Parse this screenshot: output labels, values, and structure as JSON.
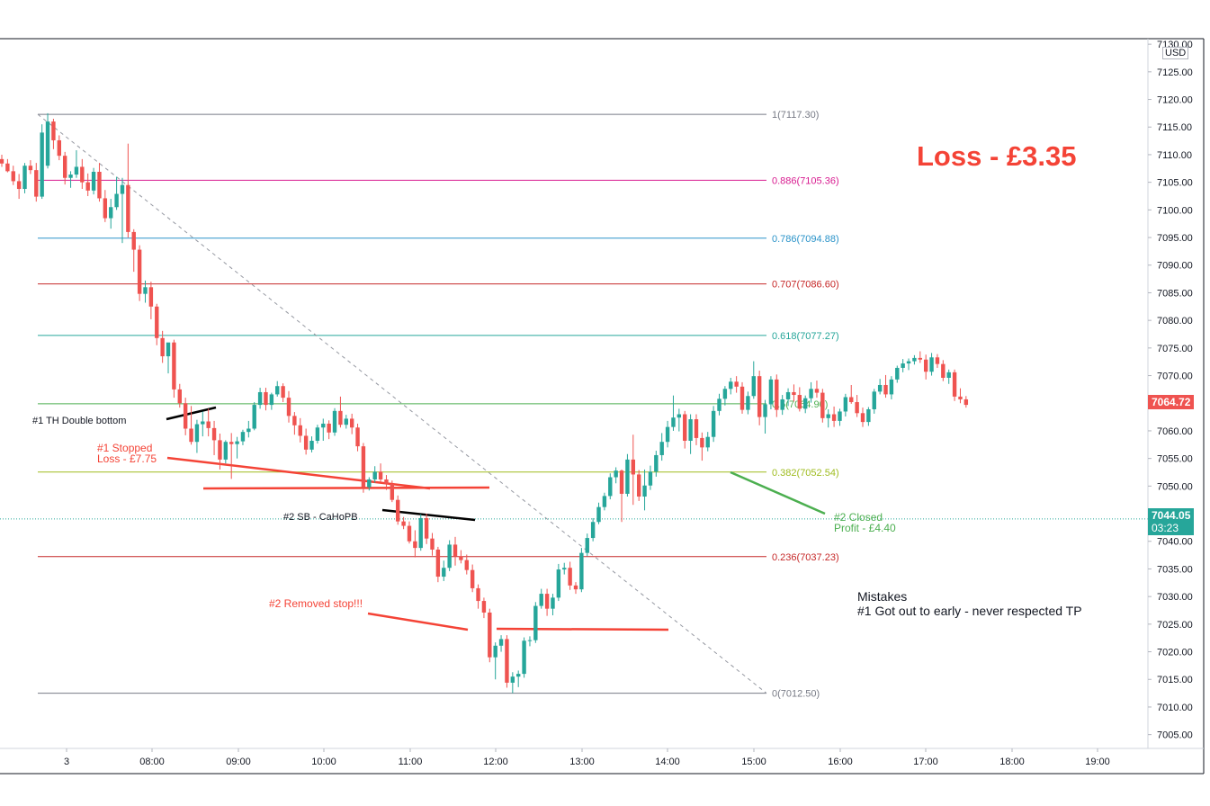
{
  "chart_data": {
    "type": "candlestick",
    "currency": "USD",
    "y_range": [
      7002.5,
      7131.0
    ],
    "y_ticks": [
      "7130.00",
      "7125.00",
      "7120.00",
      "7115.00",
      "7110.00",
      "7105.00",
      "7100.00",
      "7095.00",
      "7090.00",
      "7085.00",
      "7080.00",
      "7075.00",
      "7070.00",
      "7065.00",
      "7060.00",
      "7055.00",
      "7050.00",
      "7045.00",
      "7040.00",
      "7035.00",
      "7030.00",
      "7025.00",
      "7020.00",
      "7015.00",
      "7010.00",
      "7005.00"
    ],
    "x_ticks": [
      "3",
      "08:00",
      "09:00",
      "10:00",
      "11:00",
      "12:00",
      "13:00",
      "14:00",
      "15:00",
      "16:00",
      "17:00",
      "18:00",
      "19:00"
    ],
    "candles": [
      [
        7109.2,
        7110.0,
        7107.8,
        7108.4
      ],
      [
        7108.4,
        7109.2,
        7106.8,
        7107.0
      ],
      [
        7107.0,
        7108.0,
        7104.5,
        7105.2
      ],
      [
        7105.2,
        7106.5,
        7102.0,
        7103.8
      ],
      [
        7103.8,
        7108.5,
        7103.0,
        7108.0
      ],
      [
        7108.0,
        7109.0,
        7106.5,
        7107.2
      ],
      [
        7107.2,
        7108.5,
        7101.5,
        7102.4
      ],
      [
        7102.4,
        7115.5,
        7102.0,
        7114.0
      ],
      [
        7108.0,
        7117.5,
        7107.5,
        7116.0
      ],
      [
        7116.0,
        7116.5,
        7111.0,
        7112.6
      ],
      [
        7112.6,
        7113.5,
        7109.0,
        7109.8
      ],
      [
        7109.8,
        7110.5,
        7104.6,
        7105.8
      ],
      [
        7105.8,
        7107.0,
        7104.0,
        7106.4
      ],
      [
        7106.4,
        7110.8,
        7105.8,
        7107.8
      ],
      [
        7107.8,
        7109.2,
        7103.8,
        7105.0
      ],
      [
        7105.0,
        7106.6,
        7102.5,
        7103.5
      ],
      [
        7103.5,
        7107.6,
        7102.8,
        7106.9
      ],
      [
        7106.9,
        7108.5,
        7101.5,
        7102.1
      ],
      [
        7102.1,
        7103.6,
        7097.8,
        7098.5
      ],
      [
        7098.5,
        7102.0,
        7096.6,
        7100.5
      ],
      [
        7100.5,
        7106.0,
        7100.0,
        7102.9
      ],
      [
        7102.9,
        7105.8,
        7094.0,
        7104.5
      ],
      [
        7104.5,
        7112.0,
        7095.0,
        7096.0
      ],
      [
        7096.0,
        7096.5,
        7088.8,
        7092.8
      ],
      [
        7092.8,
        7093.6,
        7083.5,
        7084.8
      ],
      [
        7084.8,
        7087.2,
        7083.2,
        7086.0
      ],
      [
        7086.0,
        7087.0,
        7080.2,
        7082.5
      ],
      [
        7082.5,
        7083.0,
        7075.5,
        7076.8
      ],
      [
        7076.8,
        7078.1,
        7072.3,
        7073.5
      ],
      [
        7073.5,
        7075.6,
        7070.4,
        7076.0
      ],
      [
        7076.0,
        7076.5,
        7066.0,
        7067.5
      ],
      [
        7067.5,
        7068.5,
        7064.2,
        7065.0
      ],
      [
        7065.0,
        7066.0,
        7059.2,
        7060.4
      ],
      [
        7060.4,
        7064.5,
        7057.5,
        7058.0
      ],
      [
        7058.0,
        7062.0,
        7056.0,
        7061.2
      ],
      [
        7061.2,
        7063.5,
        7059.0,
        7061.7
      ],
      [
        7061.7,
        7064.0,
        7059.0,
        7060.5
      ],
      [
        7060.5,
        7061.8,
        7055.6,
        7058.3
      ],
      [
        7058.3,
        7059.5,
        7053.0,
        7054.8
      ],
      [
        7054.8,
        7058.3,
        7054.1,
        7058.0
      ],
      [
        7058.0,
        7059.6,
        7051.3,
        7057.6
      ],
      [
        7057.6,
        7058.9,
        7055.0,
        7058.1
      ],
      [
        7058.1,
        7060.2,
        7057.4,
        7059.8
      ],
      [
        7059.8,
        7061.8,
        7058.8,
        7060.4
      ],
      [
        7060.4,
        7065.2,
        7060.1,
        7064.7
      ],
      [
        7064.7,
        7067.8,
        7064.0,
        7067.0
      ],
      [
        7067.0,
        7067.8,
        7063.7,
        7064.7
      ],
      [
        7064.7,
        7066.9,
        7063.8,
        7066.6
      ],
      [
        7066.6,
        7069.0,
        7066.2,
        7068.1
      ],
      [
        7068.1,
        7068.6,
        7065.2,
        7066.0
      ],
      [
        7066.0,
        7067.2,
        7061.5,
        7062.7
      ],
      [
        7062.7,
        7063.4,
        7059.3,
        7061.0
      ],
      [
        7061.0,
        7062.3,
        7057.9,
        7059.1
      ],
      [
        7059.1,
        7060.4,
        7055.7,
        7056.6
      ],
      [
        7056.6,
        7059.0,
        7056.1,
        7058.2
      ],
      [
        7058.2,
        7061.1,
        7057.7,
        7060.6
      ],
      [
        7060.6,
        7062.2,
        7058.2,
        7061.3
      ],
      [
        7061.3,
        7061.9,
        7058.5,
        7059.7
      ],
      [
        7059.7,
        7064.1,
        7059.1,
        7063.6
      ],
      [
        7063.6,
        7066.2,
        7060.6,
        7061.1
      ],
      [
        7061.1,
        7062.9,
        7060.4,
        7062.2
      ],
      [
        7062.2,
        7063.1,
        7059.4,
        7060.6
      ],
      [
        7060.6,
        7061.3,
        7056.3,
        7057.2
      ],
      [
        7057.2,
        7057.8,
        7048.8,
        7049.8
      ],
      [
        7049.8,
        7051.6,
        7049.2,
        7051.2
      ],
      [
        7051.2,
        7053.6,
        7050.6,
        7052.6
      ],
      [
        7052.6,
        7054.1,
        7050.8,
        7051.2
      ],
      [
        7051.2,
        7052.0,
        7049.3,
        7050.4
      ],
      [
        7050.4,
        7051.0,
        7047.1,
        7047.5
      ],
      [
        7047.5,
        7048.3,
        7043.0,
        7043.6
      ],
      [
        7043.6,
        7044.4,
        7042.2,
        7042.8
      ],
      [
        7042.8,
        7043.6,
        7039.6,
        7040.0
      ],
      [
        7040.0,
        7042.0,
        7037.1,
        7038.8
      ],
      [
        7038.8,
        7044.9,
        7038.3,
        7044.2
      ],
      [
        7044.2,
        7045.0,
        7039.5,
        7040.5
      ],
      [
        7040.5,
        7041.5,
        7037.4,
        7038.5
      ],
      [
        7038.5,
        7039.0,
        7032.6,
        7033.6
      ],
      [
        7033.6,
        7036.5,
        7032.8,
        7035.2
      ],
      [
        7035.2,
        7040.2,
        7034.6,
        7039.4
      ],
      [
        7039.4,
        7040.8,
        7035.6,
        7037.3
      ],
      [
        7037.3,
        7038.4,
        7036.0,
        7036.6
      ],
      [
        7036.6,
        7037.6,
        7034.0,
        7034.8
      ],
      [
        7034.8,
        7035.8,
        7030.8,
        7031.5
      ],
      [
        7031.5,
        7032.2,
        7027.8,
        7029.2
      ],
      [
        7029.2,
        7029.8,
        7026.1,
        7027.1
      ],
      [
        7027.1,
        7027.8,
        7018.1,
        7019.0
      ],
      [
        7019.0,
        7021.7,
        7015.0,
        7021.1
      ],
      [
        7021.1,
        7023.0,
        7020.0,
        7022.3
      ],
      [
        7022.3,
        7023.0,
        7013.5,
        7014.4
      ],
      [
        7014.4,
        7016.3,
        7012.5,
        7015.5
      ],
      [
        7015.5,
        7016.6,
        7013.6,
        7016.0
      ],
      [
        7016.0,
        7022.6,
        7015.3,
        7022.0
      ],
      [
        7022.0,
        7022.8,
        7021.0,
        7022.1
      ],
      [
        7022.1,
        7029.0,
        7021.6,
        7028.3
      ],
      [
        7028.3,
        7031.4,
        7027.8,
        7030.5
      ],
      [
        7030.5,
        7031.4,
        7026.5,
        7027.8
      ],
      [
        7027.8,
        7030.5,
        7026.6,
        7029.8
      ],
      [
        7029.8,
        7035.9,
        7029.2,
        7034.9
      ],
      [
        7034.9,
        7036.1,
        7034.0,
        7035.2
      ],
      [
        7035.2,
        7036.3,
        7031.2,
        7032.0
      ],
      [
        7032.0,
        7032.6,
        7030.5,
        7031.3
      ],
      [
        7031.3,
        7038.8,
        7030.8,
        7037.9
      ],
      [
        7037.9,
        7041.4,
        7037.3,
        7040.6
      ],
      [
        7040.6,
        7044.2,
        7040.0,
        7043.5
      ],
      [
        7043.5,
        7047.0,
        7043.1,
        7046.2
      ],
      [
        7046.2,
        7048.8,
        7045.6,
        7048.2
      ],
      [
        7048.2,
        7052.3,
        7047.6,
        7051.6
      ],
      [
        7051.6,
        7053.4,
        7050.5,
        7052.8
      ],
      [
        7052.8,
        7053.0,
        7043.5,
        7048.6
      ],
      [
        7048.6,
        7055.8,
        7048.1,
        7054.8
      ],
      [
        7054.8,
        7059.3,
        7046.6,
        7052.1
      ],
      [
        7052.1,
        7052.9,
        7047.3,
        7048.1
      ],
      [
        7048.1,
        7053.0,
        7045.6,
        7050.1
      ],
      [
        7050.1,
        7053.7,
        7049.3,
        7052.6
      ],
      [
        7052.6,
        7056.4,
        7051.7,
        7055.6
      ],
      [
        7055.6,
        7059.6,
        7054.6,
        7058.0
      ],
      [
        7058.0,
        7061.8,
        7057.0,
        7060.7
      ],
      [
        7060.7,
        7066.4,
        7060.0,
        7062.4
      ],
      [
        7062.4,
        7064.0,
        7059.9,
        7063.0
      ],
      [
        7063.0,
        7063.6,
        7056.8,
        7058.2
      ],
      [
        7058.2,
        7063.0,
        7055.8,
        7062.1
      ],
      [
        7062.1,
        7063.0,
        7057.4,
        7058.7
      ],
      [
        7058.7,
        7059.7,
        7054.6,
        7057.0
      ],
      [
        7057.0,
        7059.8,
        7056.3,
        7058.9
      ],
      [
        7058.9,
        7064.5,
        7058.0,
        7063.6
      ],
      [
        7063.6,
        7066.7,
        7062.8,
        7065.8
      ],
      [
        7065.8,
        7068.1,
        7064.6,
        7067.6
      ],
      [
        7067.6,
        7069.6,
        7066.6,
        7068.9
      ],
      [
        7068.9,
        7069.9,
        7066.9,
        7068.0
      ],
      [
        7068.0,
        7068.8,
        7063.1,
        7063.8
      ],
      [
        7063.8,
        7067.1,
        7063.0,
        7066.3
      ],
      [
        7066.3,
        7072.6,
        7065.8,
        7069.9
      ],
      [
        7069.9,
        7070.9,
        7061.0,
        7062.5
      ],
      [
        7062.5,
        7065.6,
        7059.5,
        7064.8
      ],
      [
        7064.8,
        7069.9,
        7063.9,
        7069.3
      ],
      [
        7069.3,
        7070.2,
        7062.5,
        7063.8
      ],
      [
        7063.8,
        7066.5,
        7062.9,
        7065.7
      ],
      [
        7065.7,
        7067.7,
        7064.5,
        7067.0
      ],
      [
        7067.0,
        7068.4,
        7065.3,
        7066.5
      ],
      [
        7066.5,
        7067.9,
        7063.5,
        7064.0
      ],
      [
        7064.0,
        7066.4,
        7063.2,
        7065.9
      ],
      [
        7065.9,
        7068.8,
        7065.1,
        7067.6
      ],
      [
        7067.6,
        7069.1,
        7066.0,
        7066.9
      ],
      [
        7066.9,
        7067.6,
        7061.5,
        7062.3
      ],
      [
        7062.3,
        7063.9,
        7060.6,
        7063.0
      ],
      [
        7063.0,
        7064.4,
        7060.7,
        7061.8
      ],
      [
        7061.8,
        7064.0,
        7060.9,
        7063.5
      ],
      [
        7063.5,
        7066.7,
        7062.6,
        7066.1
      ],
      [
        7066.1,
        7068.3,
        7064.9,
        7065.2
      ],
      [
        7065.2,
        7066.5,
        7062.5,
        7063.2
      ],
      [
        7063.2,
        7064.2,
        7060.7,
        7061.6
      ],
      [
        7061.6,
        7064.3,
        7060.9,
        7063.9
      ],
      [
        7063.9,
        7067.6,
        7063.1,
        7067.1
      ],
      [
        7067.1,
        7069.4,
        7066.6,
        7068.3
      ],
      [
        7068.3,
        7070.1,
        7066.0,
        7066.6
      ],
      [
        7066.6,
        7069.9,
        7065.7,
        7069.3
      ],
      [
        7069.3,
        7071.8,
        7068.7,
        7071.4
      ],
      [
        7071.4,
        7073.0,
        7070.6,
        7072.2
      ],
      [
        7072.2,
        7073.1,
        7071.0,
        7072.6
      ],
      [
        7072.6,
        7073.7,
        7072.0,
        7073.2
      ],
      [
        7073.2,
        7074.4,
        7072.3,
        7072.9
      ],
      [
        7072.9,
        7073.8,
        7069.3,
        7070.7
      ],
      [
        7070.7,
        7074.1,
        7070.0,
        7073.3
      ],
      [
        7073.3,
        7073.9,
        7071.4,
        7072.1
      ],
      [
        7072.1,
        7072.8,
        7069.0,
        7069.6
      ],
      [
        7069.6,
        7071.1,
        7068.5,
        7070.6
      ],
      [
        7070.6,
        7071.1,
        7065.4,
        7066.2
      ],
      [
        7066.2,
        7067.7,
        7065.0,
        7065.7
      ],
      [
        7065.7,
        7066.3,
        7064.2,
        7064.7
      ]
    ],
    "current_price": {
      "value": 7064.72,
      "label": "7064.72",
      "color": "#ef5350"
    },
    "last_price": {
      "value": 7044.05,
      "label": "7044.05",
      "countdown": "03:23",
      "color": "#26a69a"
    },
    "fib_levels": [
      {
        "value": 7117.3,
        "label": "1(7117.30)",
        "color": "#787b86"
      },
      {
        "value": 7105.36,
        "label": "0.886(7105.36)",
        "color": "#d81b90"
      },
      {
        "value": 7094.88,
        "label": "0.786(7094.88)",
        "color": "#2a93c9"
      },
      {
        "value": 7086.6,
        "label": "0.707(7086.60)",
        "color": "#c62828"
      },
      {
        "value": 7077.27,
        "label": "0.618(7077.27)",
        "color": "#26a69a"
      },
      {
        "value": 7064.9,
        "label": "0.5(7064.90)",
        "color": "#4caf50"
      },
      {
        "value": 7052.54,
        "label": "0.382(7052.54)",
        "color": "#9fbc1f"
      },
      {
        "value": 7037.23,
        "label": "0.236(7037.23)",
        "color": "#c62828"
      },
      {
        "value": 7012.5,
        "label": "0(7012.50)",
        "color": "#787b86"
      }
    ],
    "annotations": {
      "result": "Loss - £3.35",
      "trade1_setup": "#1 TH Double bottom",
      "trade1_stop_line1": "#1 Stopped",
      "trade1_stop_line2": "Loss - £7.75",
      "trade2_setup": "#2 SB - CaHoPB",
      "trade2_removed": "#2 Removed stop!!!",
      "trade2_close_line1": "#2 Closed",
      "trade2_close_line2": "Profit - £4.40",
      "mistakes_title": "Mistakes",
      "mistakes_item": "#1  Got out to early - never respected TP"
    },
    "colors": {
      "up": "#26a69a",
      "down": "#ef5350",
      "annotation_red": "#f44336",
      "annotation_green": "#4caf50"
    }
  }
}
